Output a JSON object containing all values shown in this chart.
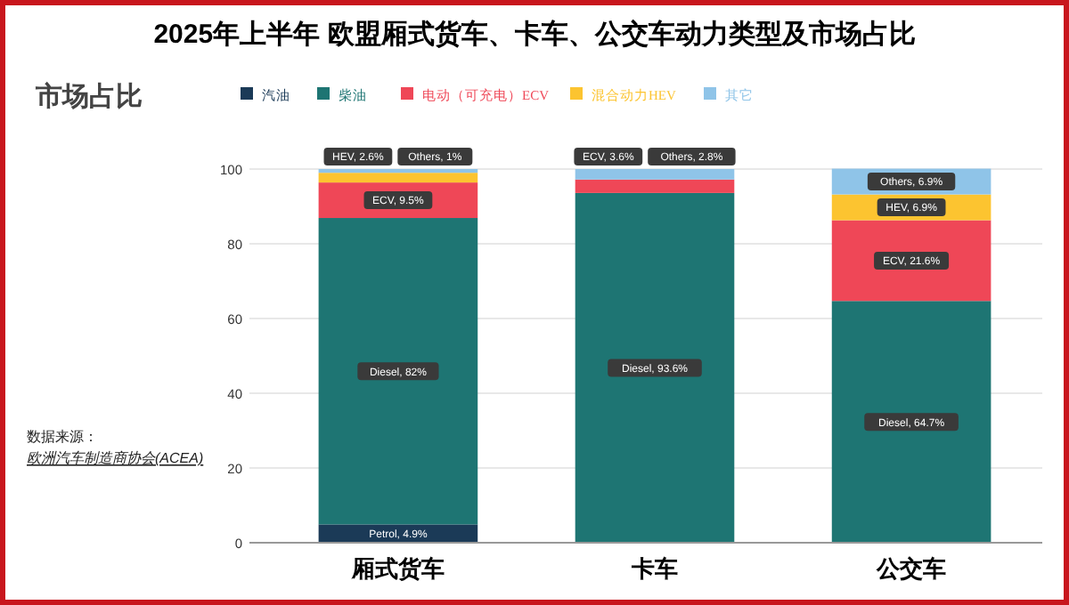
{
  "chart_data": {
    "type": "bar",
    "stacked": true,
    "title": "2025年上半年  欧盟厢式货车、卡车、公交车动力类型及市场占比",
    "ylabel": "市场占比",
    "categories": [
      "厢式货车",
      "卡车",
      "公交车"
    ],
    "series": [
      {
        "name": "汽油",
        "color": "#1b3a57",
        "values": [
          4.9,
          null,
          null
        ],
        "value_labels": [
          "Petrol, 4.9%",
          null,
          null
        ]
      },
      {
        "name": "柴油",
        "color": "#1e7573",
        "values": [
          82,
          93.6,
          64.7
        ],
        "value_labels": [
          "Diesel, 82%",
          "Diesel, 93.6%",
          "Diesel, 64.7%"
        ]
      },
      {
        "name": "电动（可充电）ECV",
        "color": "#ef4757",
        "values": [
          9.5,
          3.6,
          21.6
        ],
        "value_labels": [
          "ECV, 9.5%",
          "ECV, 3.6%",
          "ECV, 21.6%"
        ]
      },
      {
        "name": "混合动力HEV",
        "color": "#fcc430",
        "values": [
          2.6,
          null,
          6.9
        ],
        "value_labels": [
          "HEV, 2.6%",
          null,
          "HEV, 6.9%"
        ]
      },
      {
        "name": "其它",
        "color": "#8fc4e8",
        "values": [
          1,
          2.8,
          6.9
        ],
        "value_labels": [
          "Others, 1%",
          "Others, 2.8%",
          "Others, 6.9%"
        ]
      }
    ],
    "ylim": [
      0,
      100
    ],
    "yticks": [
      0,
      20,
      40,
      60,
      80,
      100
    ],
    "grid": "y",
    "legend": "top",
    "annotations": [
      "数据来源：",
      "欧洲汽车制造商协会(ACEA)"
    ]
  }
}
